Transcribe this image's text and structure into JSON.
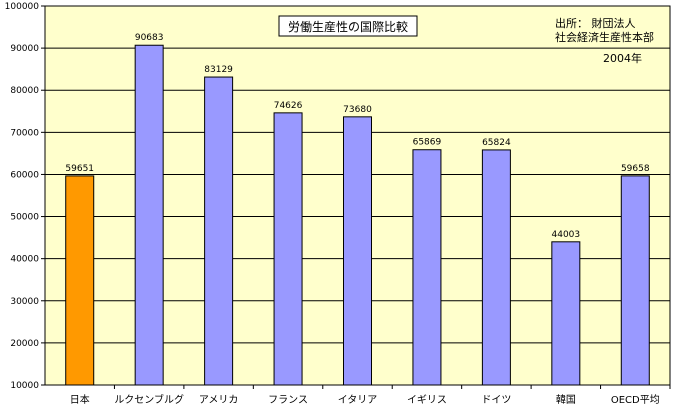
{
  "chart_data": {
    "type": "bar",
    "title": "労働生産性の国際比較",
    "source_lines": [
      "出所： 財団法人",
      "社会経済生産性本部"
    ],
    "year_note": "2004年",
    "categories": [
      "日本",
      "ルクセンブルグ",
      "アメリカ",
      "フランス",
      "イタリア",
      "イギリス",
      "ドイツ",
      "韓国",
      "OECD平均"
    ],
    "values": [
      59651,
      90683,
      83129,
      74626,
      73680,
      65869,
      65824,
      44003,
      59658
    ],
    "data_labels": [
      "59651",
      "90683",
      "83129",
      "74626",
      "73680",
      "65869",
      "65824",
      "44003",
      "59658"
    ],
    "ylim": [
      10000,
      100000
    ],
    "yticks": [
      10000,
      20000,
      30000,
      40000,
      50000,
      60000,
      70000,
      80000,
      90000,
      100000
    ],
    "ytick_labels": [
      "10000",
      "20000",
      "30000",
      "40000",
      "50000",
      "60000",
      "70000",
      "80000",
      "90000",
      "100000"
    ],
    "xlabel": "",
    "ylabel": "",
    "grid": true,
    "colors": {
      "plot_bg": "#ffffcc",
      "bar_default": "#9999ff",
      "bar_highlight": "#ff9900",
      "grid": "#000000"
    }
  }
}
